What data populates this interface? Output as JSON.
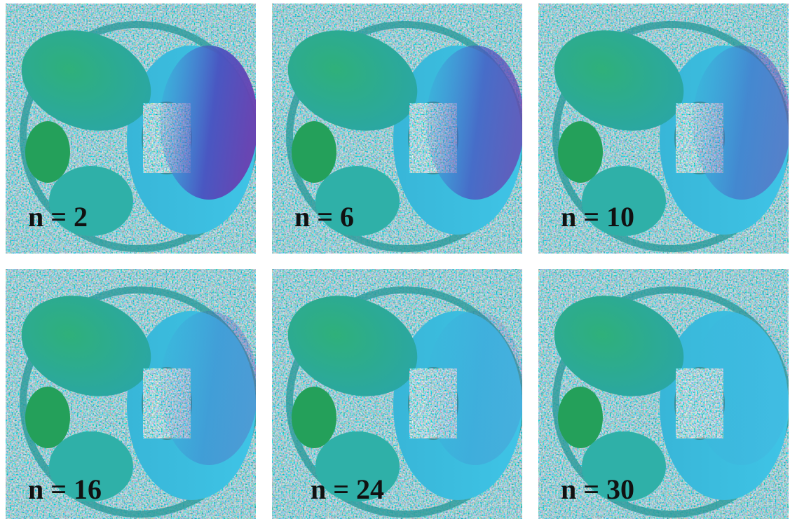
{
  "panels": [
    {
      "label": "n = 2"
    },
    {
      "label": "n = 6"
    },
    {
      "label": "n = 10"
    },
    {
      "label": "n = 16"
    },
    {
      "label": "n = 24"
    },
    {
      "label": "n = 30"
    }
  ]
}
